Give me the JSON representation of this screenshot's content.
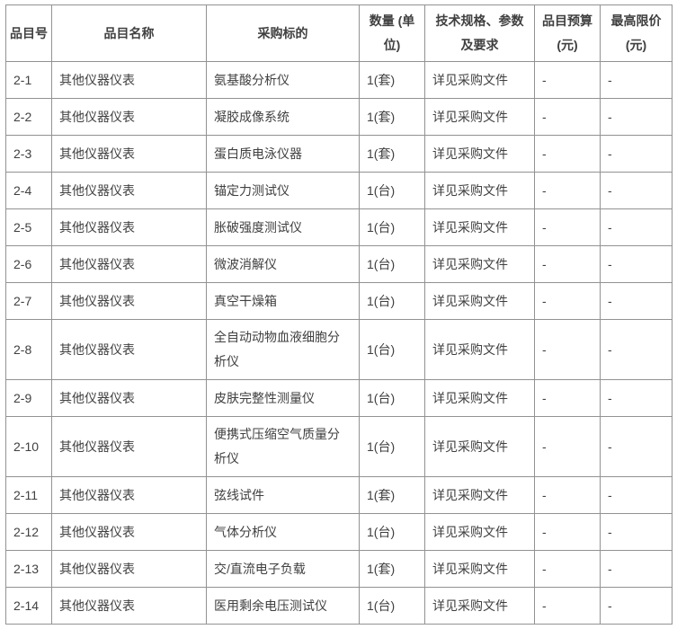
{
  "colors": {
    "border": "#929292",
    "text": "#404040",
    "background": "#ffffff"
  },
  "table": {
    "columns": [
      {
        "key": "item_no",
        "label": "品目号"
      },
      {
        "key": "item_name",
        "label": "品目名称"
      },
      {
        "key": "subject",
        "label": "采购标的"
      },
      {
        "key": "quantity",
        "label": "数量 (单\n位)"
      },
      {
        "key": "spec",
        "label": "技术规格、参数\n及要求"
      },
      {
        "key": "budget",
        "label": "品目预算\n(元)"
      },
      {
        "key": "max_price",
        "label": "最高限价\n(元)"
      }
    ],
    "rows": [
      [
        "2-1",
        "其他仪器仪表",
        "氨基酸分析仪",
        "1(套)",
        "详见采购文件",
        "-",
        "-"
      ],
      [
        "2-2",
        "其他仪器仪表",
        "凝胶成像系统",
        "1(套)",
        "详见采购文件",
        "-",
        "-"
      ],
      [
        "2-3",
        "其他仪器仪表",
        "蛋白质电泳仪器",
        "1(套)",
        "详见采购文件",
        "-",
        "-"
      ],
      [
        "2-4",
        "其他仪器仪表",
        "锚定力测试仪",
        "1(台)",
        "详见采购文件",
        "-",
        "-"
      ],
      [
        "2-5",
        "其他仪器仪表",
        "胀破强度测试仪",
        "1(台)",
        "详见采购文件",
        "-",
        "-"
      ],
      [
        "2-6",
        "其他仪器仪表",
        "微波消解仪",
        "1(台)",
        "详见采购文件",
        "-",
        "-"
      ],
      [
        "2-7",
        "其他仪器仪表",
        "真空干燥箱",
        "1(台)",
        "详见采购文件",
        "-",
        "-"
      ],
      [
        "2-8",
        "其他仪器仪表",
        "全自动动物血液细胞分\n析仪",
        "1(台)",
        "详见采购文件",
        "-",
        "-"
      ],
      [
        "2-9",
        "其他仪器仪表",
        "皮肤完整性测量仪",
        "1(台)",
        "详见采购文件",
        "-",
        "-"
      ],
      [
        "2-10",
        "其他仪器仪表",
        "便携式压缩空气质量分\n析仪",
        "1(台)",
        "详见采购文件",
        "-",
        "-"
      ],
      [
        "2-11",
        "其他仪器仪表",
        "弦线试件",
        "1(套)",
        "详见采购文件",
        "-",
        "-"
      ],
      [
        "2-12",
        "其他仪器仪表",
        "气体分析仪",
        "1(台)",
        "详见采购文件",
        "-",
        "-"
      ],
      [
        "2-13",
        "其他仪器仪表",
        "交/直流电子负载",
        "1(套)",
        "详见采购文件",
        "-",
        "-"
      ],
      [
        "2-14",
        "其他仪器仪表",
        "医用剩余电压测试仪",
        "1(台)",
        "详见采购文件",
        "-",
        "-"
      ]
    ]
  }
}
